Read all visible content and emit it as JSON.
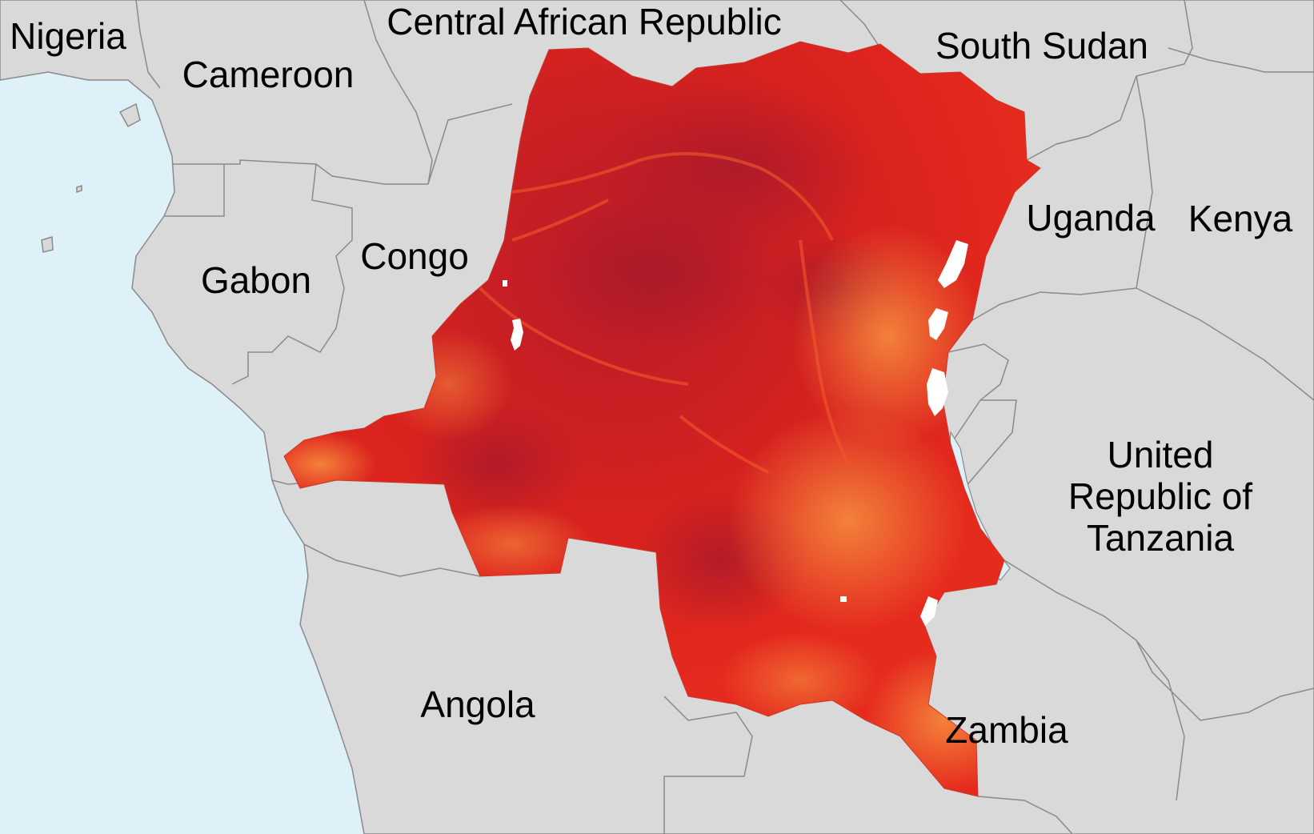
{
  "map": {
    "colors": {
      "ocean": "#dff1f8",
      "land": "#d9d9d9",
      "border": "#8a8a8a",
      "drc_dark": "#c41d24",
      "drc_mid": "#e2261f",
      "drc_light": "#f5793a",
      "lake": "#ffffff"
    },
    "labels": {
      "nigeria": "Nigeria",
      "central_african_republic": "Central African Republic",
      "cameroon": "Cameroon",
      "south_sudan": "South Sudan",
      "gabon": "Gabon",
      "congo": "Congo",
      "uganda": "Uganda",
      "kenya": "Kenya",
      "tanzania_line1": "United",
      "tanzania_line2": "Republic of",
      "tanzania_line3": "Tanzania",
      "angola": "Angola",
      "zambia": "Zambia"
    }
  }
}
